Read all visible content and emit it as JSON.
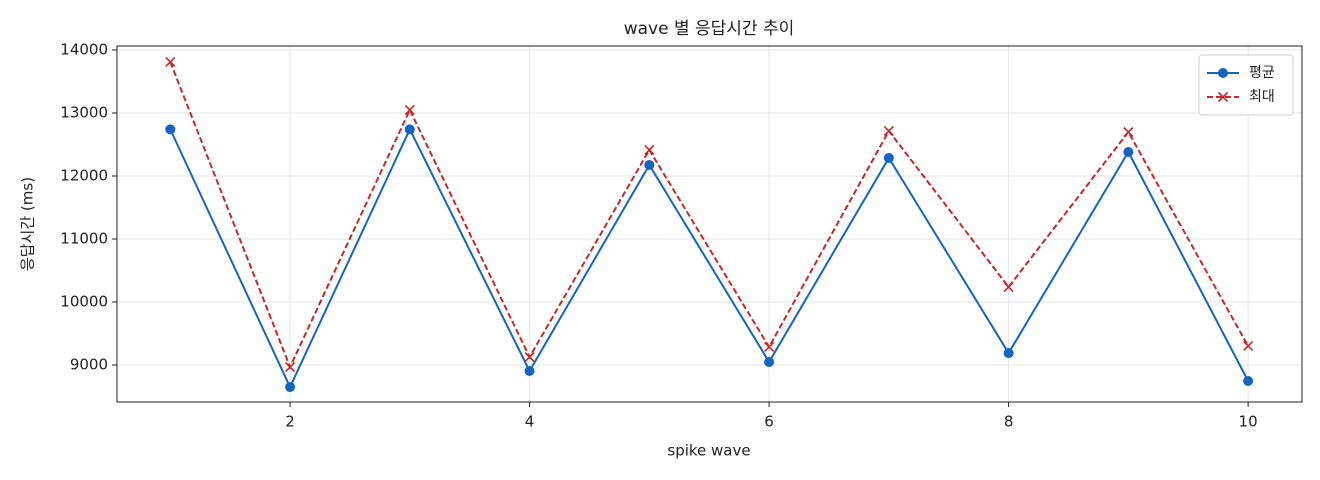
{
  "chart_data": {
    "type": "line",
    "title": "wave 별 응답시간 추이",
    "x_label": "spike wave",
    "y_label": "응답시간 (ms)",
    "x": [
      1,
      2,
      3,
      4,
      5,
      6,
      7,
      8,
      9,
      10
    ],
    "series": [
      {
        "name": "평균",
        "color": "#1565c0",
        "marker": "o",
        "dash": false,
        "values": [
          12740,
          8650,
          12740,
          8905,
          12175,
          9048,
          12286,
          9190,
          12381,
          8746
        ]
      },
      {
        "name": "최대",
        "color": "#c62828",
        "marker": "x",
        "dash": true,
        "values": [
          13810,
          8968,
          13048,
          9127,
          12413,
          9286,
          12714,
          10238,
          12698,
          9302
        ]
      }
    ],
    "xlim": [
      0.555,
      10.45
    ],
    "xticks": [
      2,
      4,
      6,
      8,
      10
    ],
    "ylim": [
      8413,
      14063
    ],
    "yticks": [
      9000,
      10000,
      11000,
      12000,
      13000,
      14000
    ],
    "grid": true,
    "legend": "upper right"
  }
}
